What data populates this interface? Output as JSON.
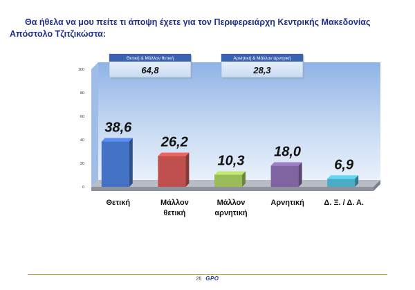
{
  "question": {
    "line1": "Θα ήθελα να μου πείτε τι άποψη έχετε για τον Περιφερειάρχη Κεντρικής Μακεδονίας",
    "line2": "Απόστολο Τζιτζικώστα:"
  },
  "chart_data": {
    "type": "bar",
    "title": "",
    "xlabel": "",
    "ylabel": "",
    "categories": [
      "Θετική",
      "Μάλλον θετική",
      "Μάλλον αρνητική",
      "Αρνητική",
      "Δ. Ξ. / Δ. Α."
    ],
    "category_lines": [
      [
        "Θετική"
      ],
      [
        "Μάλλον",
        "θετική"
      ],
      [
        "Μάλλον",
        "αρνητική"
      ],
      [
        "Αρνητική"
      ],
      [
        "Δ. Ξ. / Δ. Α."
      ]
    ],
    "values": [
      38.6,
      26.2,
      10.3,
      18.0,
      6.9
    ],
    "value_labels": [
      "38,6",
      "26,2",
      "10,3",
      "18,0",
      "6,9"
    ],
    "colors": [
      "#4472c4",
      "#c0504d",
      "#9bbb59",
      "#8064a2",
      "#4bacc6"
    ],
    "ylim": [
      0,
      100
    ],
    "yticks": [
      0,
      20,
      40,
      60,
      80,
      100
    ],
    "grid": false,
    "groups": [
      {
        "label": "Θετική & Μάλλον θετική",
        "value": "64,8"
      },
      {
        "label": "Αρνητική & Μάλλον αρνητική",
        "value": "28,3"
      }
    ]
  },
  "footer": {
    "page_number": "26",
    "logo_text": "GPO"
  }
}
